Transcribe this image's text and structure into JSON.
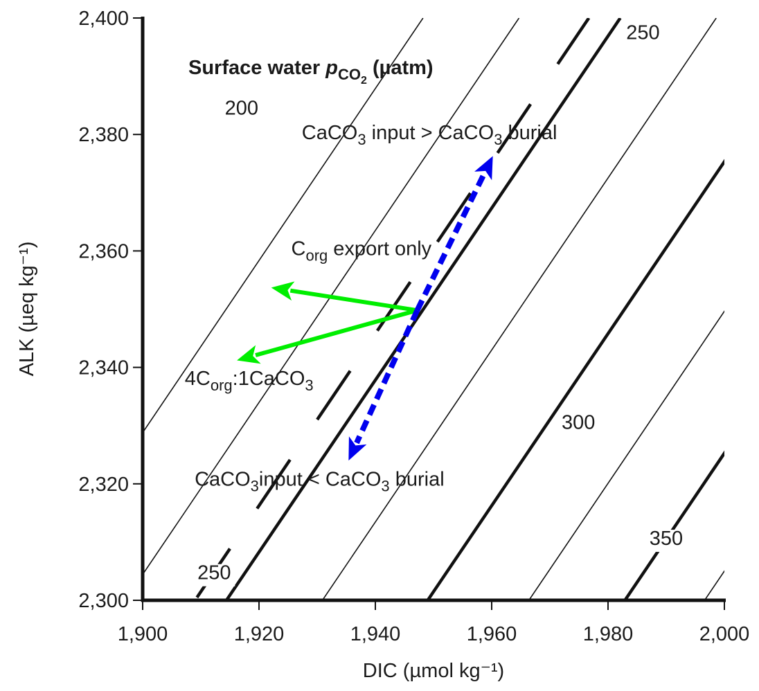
{
  "chart_data": {
    "type": "line",
    "title": "Surface water pCO2 (µatm)",
    "title_parts": {
      "pre": "Surface water ",
      "italic": "p",
      "sub": "CO",
      "subsub": "2",
      "post": " (µatm)"
    },
    "xlabel": "DIC (µmol kg⁻¹)",
    "ylabel": "ALK (µeq kg⁻¹)",
    "xlim": [
      1900,
      2000
    ],
    "ylim": [
      2300,
      2400
    ],
    "x_ticks": [
      1900,
      1920,
      1940,
      1960,
      1980,
      2000
    ],
    "y_ticks": [
      2300,
      2320,
      2340,
      2360,
      2380,
      2400
    ],
    "x_tick_labels": [
      "1,900",
      "1,920",
      "1,940",
      "1,960",
      "1,980",
      "2,000"
    ],
    "y_tick_labels": [
      "2,300",
      "2,320",
      "2,340",
      "2,360",
      "2,380",
      "2,400"
    ],
    "grid": false,
    "isolines": [
      {
        "x0": 1880.5,
        "x1": 1948.2,
        "style": "thin"
      },
      {
        "x0": 1897.0,
        "x1": 1964.7,
        "style": "thin"
      },
      {
        "x0": 1914.4,
        "x1": 1982.1,
        "style": "thick"
      },
      {
        "x0": 1930.9,
        "x1": 1998.6,
        "style": "thin"
      },
      {
        "x0": 1949.0,
        "x1": 2016.7,
        "style": "thick"
      },
      {
        "x0": 1966.4,
        "x1": 2034.1,
        "style": "thin"
      },
      {
        "x0": 1982.9,
        "x1": 2050.6,
        "style": "thick"
      },
      {
        "x0": 1996.6,
        "x1": 2064.3,
        "style": "thin"
      },
      {
        "x0": 1909.0,
        "x1": 1976.7,
        "style": "thick-dashed"
      }
    ],
    "isoline_labels": [
      {
        "text": "200",
        "x": 1917.0,
        "y": 2383.4
      },
      {
        "text": "250",
        "x": 1986.0,
        "y": 2396.4
      },
      {
        "text": "250",
        "x": 1912.3,
        "y": 2303.6
      },
      {
        "text": "300",
        "x": 1974.9,
        "y": 2329.4
      },
      {
        "text": "350",
        "x": 1990.0,
        "y": 2309.5
      }
    ],
    "annotations": {
      "corg_export": {
        "pre": "C",
        "sub": "org",
        "post": " export only",
        "x": 1937.6,
        "y": 2359.3
      },
      "ratio": {
        "t1": "4C",
        "sub1": "org",
        "t2": ":1CaCO",
        "sub2": "3",
        "x": 1918.3,
        "y": 2337.0
      },
      "input_gt": {
        "t1": "CaCO",
        "sub1": "3",
        "t2": " input > CaCO",
        "sub2": "3",
        "t3": " burial",
        "x": 1949.3,
        "y": 2379.2
      },
      "input_lt": {
        "t1": "CaCO",
        "sub1": "3",
        "t2": "input < CaCO",
        "sub2": "3",
        "t3": " burial",
        "x": 1930.4,
        "y": 2319.7
      }
    },
    "vectors": [
      {
        "name": "Corg export only",
        "from": [
          1947.2,
          2349.8
        ],
        "to": [
          1922.1,
          2353.7
        ],
        "color": "#00ee00",
        "style": "solid"
      },
      {
        "name": "4Corg:1CaCO3",
        "from": [
          1947.2,
          2349.8
        ],
        "to": [
          1916.2,
          2341.2
        ],
        "color": "#00ee00",
        "style": "solid"
      },
      {
        "name": "CaCO3 input > CaCO3 burial",
        "from": [
          1947.2,
          2349.8
        ],
        "to": [
          1960.2,
          2376.3
        ],
        "color": "#0000ee",
        "style": "dashed"
      },
      {
        "name": "CaCO3 input < CaCO3 burial",
        "from": [
          1947.2,
          2349.8
        ],
        "to": [
          1935.4,
          2324.0
        ],
        "color": "#0000ee",
        "style": "dashed"
      }
    ]
  }
}
